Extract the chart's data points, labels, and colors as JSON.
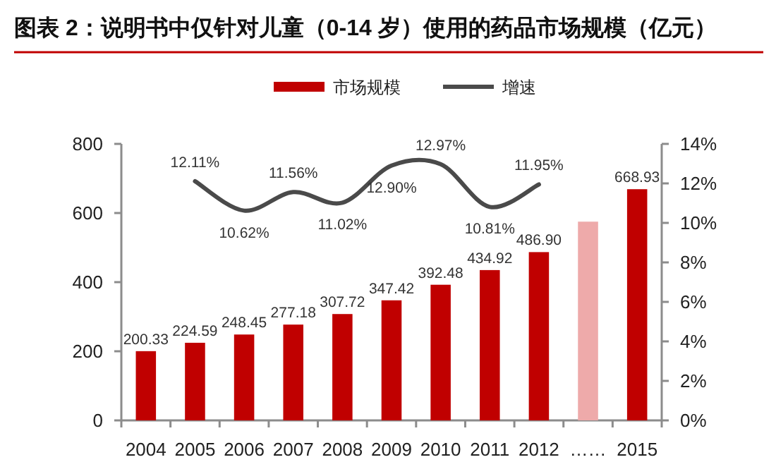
{
  "chart_data": {
    "type": "bar",
    "title": "图表 2：说明书中仅针对儿童（0-14 岁）使用的药品市场规模（亿元）",
    "categories": [
      "2004",
      "2005",
      "2006",
      "2007",
      "2008",
      "2009",
      "2010",
      "2011",
      "2012",
      "……",
      "2015"
    ],
    "series": [
      {
        "name": "市场规模",
        "colors": [
          "#c00000",
          "#c00000",
          "#c00000",
          "#c00000",
          "#c00000",
          "#c00000",
          "#c00000",
          "#c00000",
          "#c00000",
          "#eeaaaa",
          "#c00000"
        ],
        "values": [
          200.33,
          224.59,
          248.45,
          277.18,
          307.72,
          347.42,
          392.48,
          434.92,
          486.9,
          575,
          668.93
        ],
        "value_labels": [
          "200.33",
          "224.59",
          "248.45",
          "277.18",
          "307.72",
          "347.42",
          "392.48",
          "434.92",
          "486.90",
          null,
          "668.93"
        ]
      },
      {
        "name": "增速",
        "type": "line",
        "axis": "y2",
        "color": "#4a4a4a",
        "values": [
          null,
          12.11,
          10.62,
          11.56,
          11.02,
          12.9,
          12.97,
          10.81,
          11.95,
          null,
          null
        ],
        "value_labels": [
          null,
          "12.11%",
          "10.62%",
          "11.56%",
          "11.02%",
          "12.90%",
          "12.97%",
          "10.81%",
          "11.95%",
          null,
          null
        ]
      }
    ],
    "ylim": [
      0,
      800
    ],
    "yticks": [
      0,
      200,
      400,
      600,
      800
    ],
    "y2lim": [
      0,
      14
    ],
    "y2ticks": [
      {
        "value": 0,
        "label": "0%"
      },
      {
        "value": 2,
        "label": "2%"
      },
      {
        "value": 4,
        "label": "4%"
      },
      {
        "value": 6,
        "label": "6%"
      },
      {
        "value": 8,
        "label": "8%"
      },
      {
        "value": 10,
        "label": "10%"
      },
      {
        "value": 12,
        "label": "12%"
      },
      {
        "value": 14,
        "label": "14%"
      }
    ],
    "legend": "top",
    "marker": "none",
    "line_style": "solid",
    "grid": false
  }
}
